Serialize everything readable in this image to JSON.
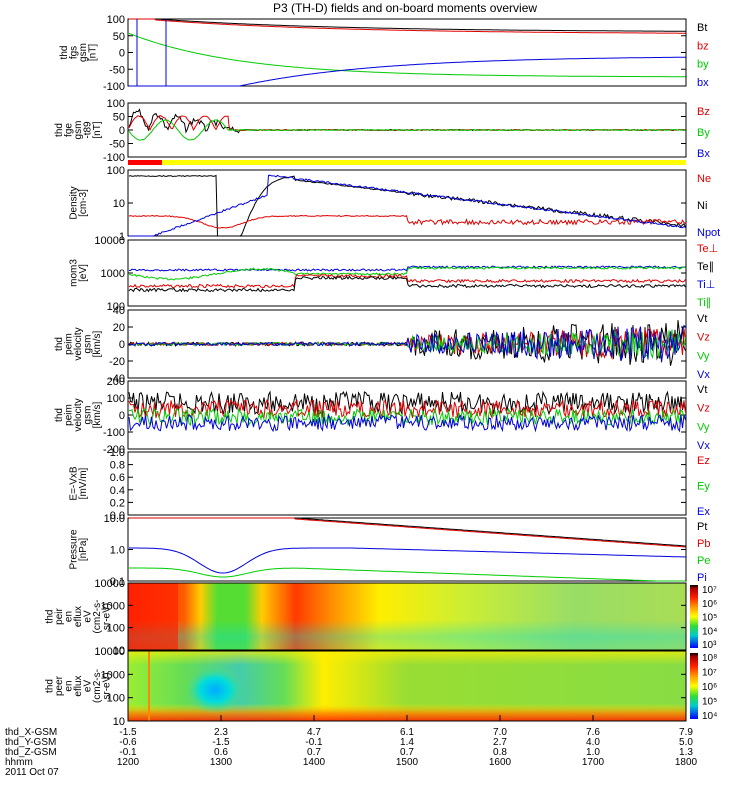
{
  "title": "P3 (TH-D) fields and on-board moments overview",
  "date_label": "2011 Oct 07",
  "colors": {
    "black": "#000000",
    "red": "#e00000",
    "green": "#00cc00",
    "blue": "#0000dd",
    "yellow": "#ffff00",
    "bar_red": "#ff0000"
  },
  "chart_data": [
    {
      "id": "fgs",
      "type": "line",
      "ylabel": [
        "thd",
        "fgs",
        "gsm",
        "[nT]"
      ],
      "yticks": [
        "100",
        "50",
        "0",
        "-50",
        "-100"
      ],
      "ylim": [
        -100,
        100
      ],
      "legend": [
        {
          "label": "Bt",
          "color": "#000000"
        },
        {
          "label": "bz",
          "color": "#e00000"
        },
        {
          "label": "by",
          "color": "#00cc00"
        },
        {
          "label": "bx",
          "color": "#0000dd"
        }
      ]
    },
    {
      "id": "fge",
      "type": "line",
      "ylabel": [
        "thd",
        "fge",
        "gsm",
        "-t89",
        "[nT]"
      ],
      "yticks": [
        "100",
        "50",
        "0",
        "-50",
        "-100"
      ],
      "ylim": [
        -100,
        100
      ],
      "legend": [
        {
          "label": "Bz",
          "color": "#e00000"
        },
        {
          "label": "By",
          "color": "#00cc00"
        },
        {
          "label": "Bx",
          "color": "#0000dd"
        }
      ]
    },
    {
      "id": "density",
      "type": "line",
      "ylabel": [
        "Density",
        "[cm-3]"
      ],
      "yticks": [
        "100",
        "10",
        "1"
      ],
      "ylim": [
        0.7,
        200
      ],
      "scale": "log",
      "legend": [
        {
          "label": "Ne",
          "color": "#e00000"
        },
        {
          "label": "Ni",
          "color": "#000000"
        },
        {
          "label": "Npot",
          "color": "#0000dd"
        }
      ]
    },
    {
      "id": "temp",
      "type": "line",
      "ylabel": [
        "mom3",
        "[eV]"
      ],
      "yticks": [
        "10000",
        "1000",
        "100"
      ],
      "ylim": [
        40,
        4000
      ],
      "scale": "log",
      "legend": [
        {
          "label": "Te⊥",
          "color": "#e00000"
        },
        {
          "label": "Te∥",
          "color": "#000000"
        },
        {
          "label": "Ti⊥",
          "color": "#0000dd"
        },
        {
          "label": "Ti∥",
          "color": "#00cc00"
        }
      ]
    },
    {
      "id": "eflow",
      "type": "line",
      "ylabel": [
        "thd",
        "peim",
        "velocity",
        "gsm",
        "[km/s]"
      ],
      "yticks": [
        "40",
        "20",
        "0",
        "-20",
        "-40"
      ],
      "ylim": [
        -40,
        40
      ],
      "legend": [
        {
          "label": "Vt",
          "color": "#000000"
        },
        {
          "label": "Vz",
          "color": "#e00000"
        },
        {
          "label": "Vy",
          "color": "#00cc00"
        },
        {
          "label": "Vx",
          "color": "#0000dd"
        }
      ]
    },
    {
      "id": "iflow",
      "type": "line",
      "ylabel": [
        "thd",
        "peim",
        "velocity",
        "gsm",
        "[km/s]"
      ],
      "yticks": [
        "200",
        "100",
        "0",
        "-100",
        "-200"
      ],
      "ylim": [
        -200,
        200
      ],
      "legend": [
        {
          "label": "Vt",
          "color": "#000000"
        },
        {
          "label": "Vz",
          "color": "#e00000"
        },
        {
          "label": "Vy",
          "color": "#00cc00"
        },
        {
          "label": "Vx",
          "color": "#0000dd"
        }
      ]
    },
    {
      "id": "efield",
      "type": "line",
      "ylabel": [
        "E=-VxB",
        "[mV/m]"
      ],
      "yticks": [
        "1.0",
        "0.8",
        "0.6",
        "0.4",
        "0.2",
        "0.0"
      ],
      "ylim": [
        0,
        1
      ],
      "legend": [
        {
          "label": "Ez",
          "color": "#e00000"
        },
        {
          "label": "Ey",
          "color": "#00cc00"
        },
        {
          "label": "Ex",
          "color": "#0000dd"
        }
      ]
    },
    {
      "id": "pressure",
      "type": "line",
      "ylabel": [
        "Pressure",
        "[nPa]"
      ],
      "yticks": [
        "10.0",
        "1.0",
        "0.1"
      ],
      "ylim": [
        0.03,
        10
      ],
      "scale": "log",
      "legend": [
        {
          "label": "Pt",
          "color": "#000000"
        },
        {
          "label": "Pb",
          "color": "#e00000"
        },
        {
          "label": "Pe",
          "color": "#00cc00"
        },
        {
          "label": "Pi",
          "color": "#0000dd"
        }
      ]
    },
    {
      "id": "ion_spec",
      "type": "heatmap",
      "ylabel": [
        "thd",
        "peir",
        "en",
        "eflux",
        "eV",
        "(cm2-s-",
        "sr-eV)"
      ],
      "yticks": [
        "10000",
        "1000",
        "100",
        "10"
      ],
      "colorbar": [
        "10⁷",
        "10⁶",
        "10⁵",
        "10⁴",
        "10³"
      ]
    },
    {
      "id": "elec_spec",
      "type": "heatmap",
      "ylabel": [
        "thd",
        "peer",
        "en",
        "eflux",
        "eV",
        "(cm2-s-",
        "sr-eV)"
      ],
      "yticks": [
        "10000",
        "1000",
        "100",
        "10"
      ],
      "colorbar": [
        "10⁸",
        "10⁷",
        "10⁶",
        "10⁵",
        "10⁴"
      ]
    }
  ],
  "xaxis": {
    "rows": [
      {
        "label": "thd_X-GSM",
        "values": [
          "-1.5",
          "2.3",
          "4.7",
          "6.1",
          "7.0",
          "7.6",
          "7.9"
        ]
      },
      {
        "label": "thd_Y-GSM",
        "values": [
          "-0.6",
          "-1.5",
          "-0.1",
          "1.4",
          "2.7",
          "4.0",
          "5.0"
        ]
      },
      {
        "label": "thd_Z-GSM",
        "values": [
          "-0.1",
          "0.6",
          "0.7",
          "0.7",
          "0.8",
          "1.0",
          "1.3"
        ]
      },
      {
        "label": "hhmm",
        "values": [
          "1200",
          "1300",
          "1400",
          "1500",
          "1600",
          "1700",
          "1800"
        ]
      }
    ]
  }
}
